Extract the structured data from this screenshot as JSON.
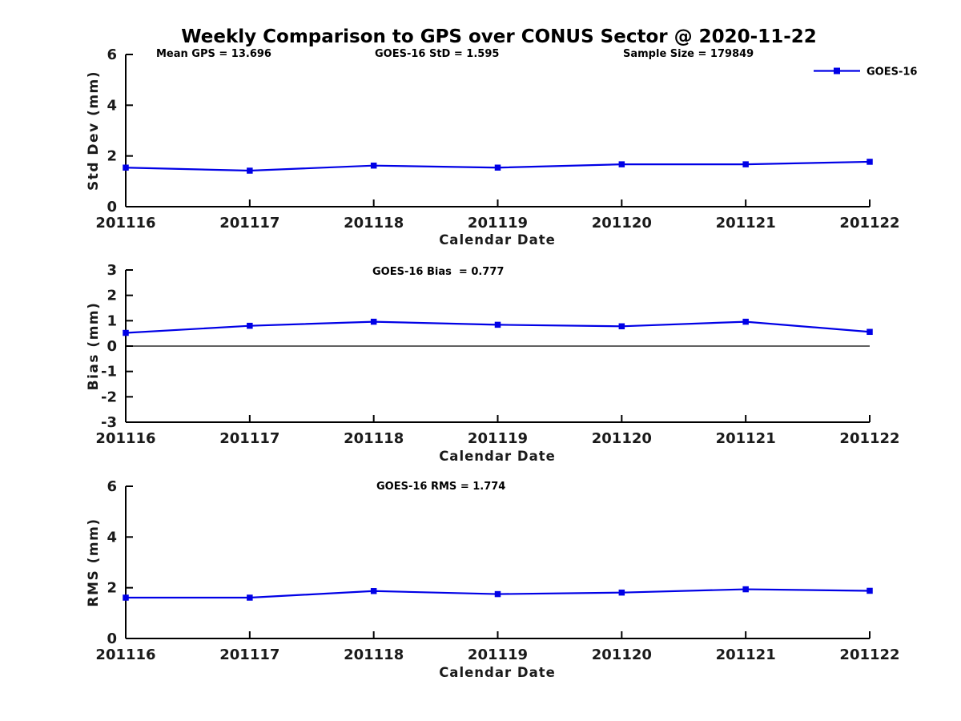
{
  "figure": {
    "title": "Weekly Comparison to GPS over CONUS Sector @ 2020-11-22"
  },
  "annotations": {
    "mean_gps": "Mean GPS = 13.696",
    "goes16_std": "GOES-16 StD = 1.595",
    "sample_size": "Sample Size = 179849",
    "goes16_bias": "GOES-16 Bias  = 0.777",
    "goes16_rms": "GOES-16 RMS = 1.774"
  },
  "legend": {
    "label": "GOES-16",
    "color": "#0000e6",
    "position": "top-right"
  },
  "chart_data": [
    {
      "type": "line",
      "title": "",
      "xlabel": "Calendar Date",
      "ylabel": "Std Dev (mm)",
      "categories": [
        "201116",
        "201117",
        "201118",
        "201119",
        "201120",
        "201121",
        "201122"
      ],
      "series": [
        {
          "name": "GOES-16",
          "color": "#0000e6",
          "marker": "square",
          "values": [
            1.54,
            1.42,
            1.62,
            1.54,
            1.67,
            1.67,
            1.77
          ]
        }
      ],
      "ylim": [
        0,
        6
      ],
      "yticks": [
        0,
        2,
        4,
        6
      ],
      "zero_line": false,
      "grid": false
    },
    {
      "type": "line",
      "title": "",
      "xlabel": "Calendar Date",
      "ylabel": "Bias (mm)",
      "categories": [
        "201116",
        "201117",
        "201118",
        "201119",
        "201120",
        "201121",
        "201122"
      ],
      "series": [
        {
          "name": "GOES-16",
          "color": "#0000e6",
          "marker": "square",
          "values": [
            0.52,
            0.8,
            0.96,
            0.84,
            0.78,
            0.96,
            0.56
          ]
        }
      ],
      "ylim": [
        -3,
        3
      ],
      "yticks": [
        -3,
        -2,
        -1,
        0,
        1,
        2,
        3
      ],
      "zero_line": true,
      "grid": false
    },
    {
      "type": "line",
      "title": "",
      "xlabel": "Calendar Date",
      "ylabel": "RMS (mm)",
      "categories": [
        "201116",
        "201117",
        "201118",
        "201119",
        "201120",
        "201121",
        "201122"
      ],
      "series": [
        {
          "name": "GOES-16",
          "color": "#0000e6",
          "marker": "square",
          "values": [
            1.61,
            1.61,
            1.87,
            1.75,
            1.81,
            1.94,
            1.88
          ]
        }
      ],
      "ylim": [
        0,
        6
      ],
      "yticks": [
        0,
        2,
        4,
        6
      ],
      "zero_line": false,
      "grid": false
    }
  ]
}
